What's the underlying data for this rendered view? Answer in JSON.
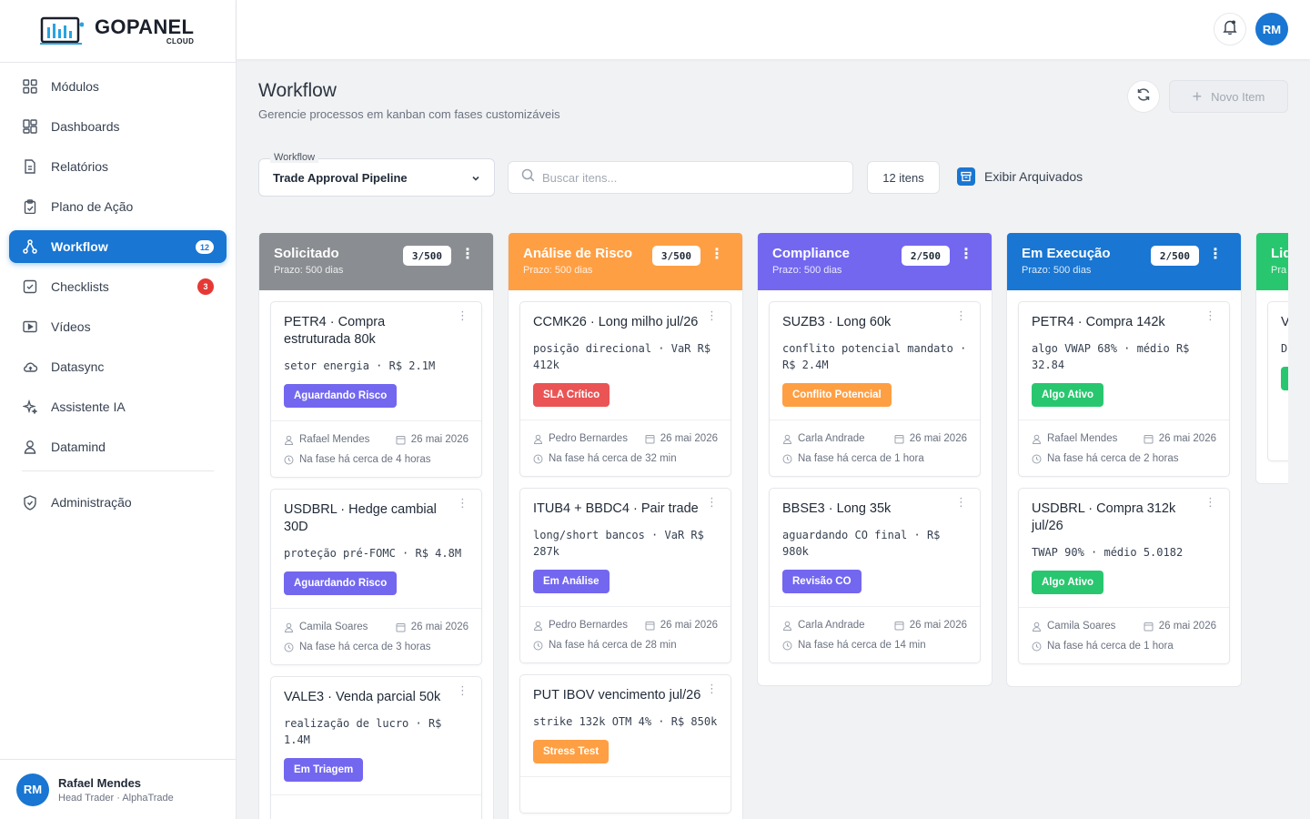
{
  "brand": {
    "name": "GOPANEL",
    "sub": "CLOUD"
  },
  "sidebar": {
    "items": [
      {
        "label": "Módulos",
        "icon": "grid-icon"
      },
      {
        "label": "Dashboards",
        "icon": "dashboard-icon"
      },
      {
        "label": "Relatórios",
        "icon": "report-icon"
      },
      {
        "label": "Plano de Ação",
        "icon": "clipboard-icon"
      },
      {
        "label": "Workflow",
        "icon": "workflow-icon",
        "badge": "12",
        "active": true
      },
      {
        "label": "Checklists",
        "icon": "checkbox-icon",
        "badge": "3"
      },
      {
        "label": "Vídeos",
        "icon": "video-icon"
      },
      {
        "label": "Datasync",
        "icon": "cloud-icon"
      },
      {
        "label": "Assistente IA",
        "icon": "sparkle-icon"
      },
      {
        "label": "Datamind",
        "icon": "person-icon"
      },
      {
        "label": "Administração",
        "icon": "shield-icon"
      }
    ],
    "user": {
      "initials": "RM",
      "name": "Rafael Mendes",
      "role": "Head Trader · AlphaTrade"
    }
  },
  "topbar": {
    "initials": "RM"
  },
  "page": {
    "title": "Workflow",
    "subtitle": "Gerencie processos em kanban com fases customizáveis",
    "new_item_label": "Novo Item"
  },
  "filters": {
    "workflow_label": "Workflow",
    "workflow_value": "Trade Approval Pipeline",
    "search_placeholder": "Buscar itens...",
    "count": "12 itens",
    "archived_label": "Exibir Arquivados"
  },
  "colors": {
    "primary": "#1976d2",
    "solicitado": "#8a8d91",
    "analise": "#ff9f43",
    "compliance": "#7367f0",
    "execucao": "#1976d2",
    "liquidacao": "#28c76f",
    "tag_purple": "#7367f0",
    "tag_red": "#ea5455",
    "tag_orange": "#ff9f43",
    "tag_green": "#28c76f"
  },
  "columns": [
    {
      "title": "Solicitado",
      "sub": "Prazo: 500 dias",
      "count": "3/500",
      "cards": [
        {
          "title": "PETR4 · Compra estruturada 80k",
          "desc": "setor energia · R$ 2.1M",
          "tag": "Aguardando Risco",
          "user": "Rafael Mendes",
          "date": "26 mai 2026",
          "phase": "Na fase há cerca de 4 horas"
        },
        {
          "title": "USDBRL · Hedge cambial 30D",
          "desc": "proteção pré-FOMC · R$ 4.8M",
          "tag": "Aguardando Risco",
          "user": "Camila Soares",
          "date": "26 mai 2026",
          "phase": "Na fase há cerca de 3 horas"
        },
        {
          "title": "VALE3 · Venda parcial 50k",
          "desc": "realização de lucro · R$ 1.4M",
          "tag": "Em Triagem"
        }
      ]
    },
    {
      "title": "Análise de Risco",
      "sub": "Prazo: 500 dias",
      "count": "3/500",
      "cards": [
        {
          "title": "CCMK26 · Long milho jul/26",
          "desc": "posição direcional · VaR R$ 412k",
          "tag": "SLA Crítico",
          "user": "Pedro Bernardes",
          "date": "26 mai 2026",
          "phase": "Na fase há cerca de 32 min"
        },
        {
          "title": "ITUB4 + BBDC4 · Pair trade",
          "desc": "long/short bancos · VaR R$ 287k",
          "tag": "Em Análise",
          "user": "Pedro Bernardes",
          "date": "26 mai 2026",
          "phase": "Na fase há cerca de 28 min"
        },
        {
          "title": "PUT IBOV vencimento jul/26",
          "desc": "strike 132k OTM 4% · R$ 850k",
          "tag": "Stress Test"
        }
      ]
    },
    {
      "title": "Compliance",
      "sub": "Prazo: 500 dias",
      "count": "2/500",
      "cards": [
        {
          "title": "SUZB3 · Long 60k",
          "desc": "conflito potencial mandato · R$ 2.4M",
          "tag": "Conflito Potencial",
          "user": "Carla Andrade",
          "date": "26 mai 2026",
          "phase": "Na fase há cerca de 1 hora"
        },
        {
          "title": "BBSE3 · Long 35k",
          "desc": "aguardando CO final · R$ 980k",
          "tag": "Revisão CO",
          "user": "Carla Andrade",
          "date": "26 mai 2026",
          "phase": "Na fase há cerca de 14 min"
        }
      ]
    },
    {
      "title": "Em Execução",
      "sub": "Prazo: 500 dias",
      "count": "2/500",
      "cards": [
        {
          "title": "PETR4 · Compra 142k",
          "desc": "algo VWAP 68% · médio R$ 32.84",
          "tag": "Algo Ativo",
          "user": "Rafael Mendes",
          "date": "26 mai 2026",
          "phase": "Na fase há cerca de 2 horas"
        },
        {
          "title": "USDBRL · Compra 312k jul/26",
          "desc": "TWAP 90% · médio 5.0182",
          "tag": "Algo Ativo",
          "user": "Camila Soares",
          "date": "26 mai 2026",
          "phase": "Na fase há cerca de 1 hora"
        }
      ]
    },
    {
      "title": "Liq",
      "sub": "Pra",
      "cards": [
        {
          "title": "V",
          "desc": "D"
        }
      ]
    }
  ]
}
